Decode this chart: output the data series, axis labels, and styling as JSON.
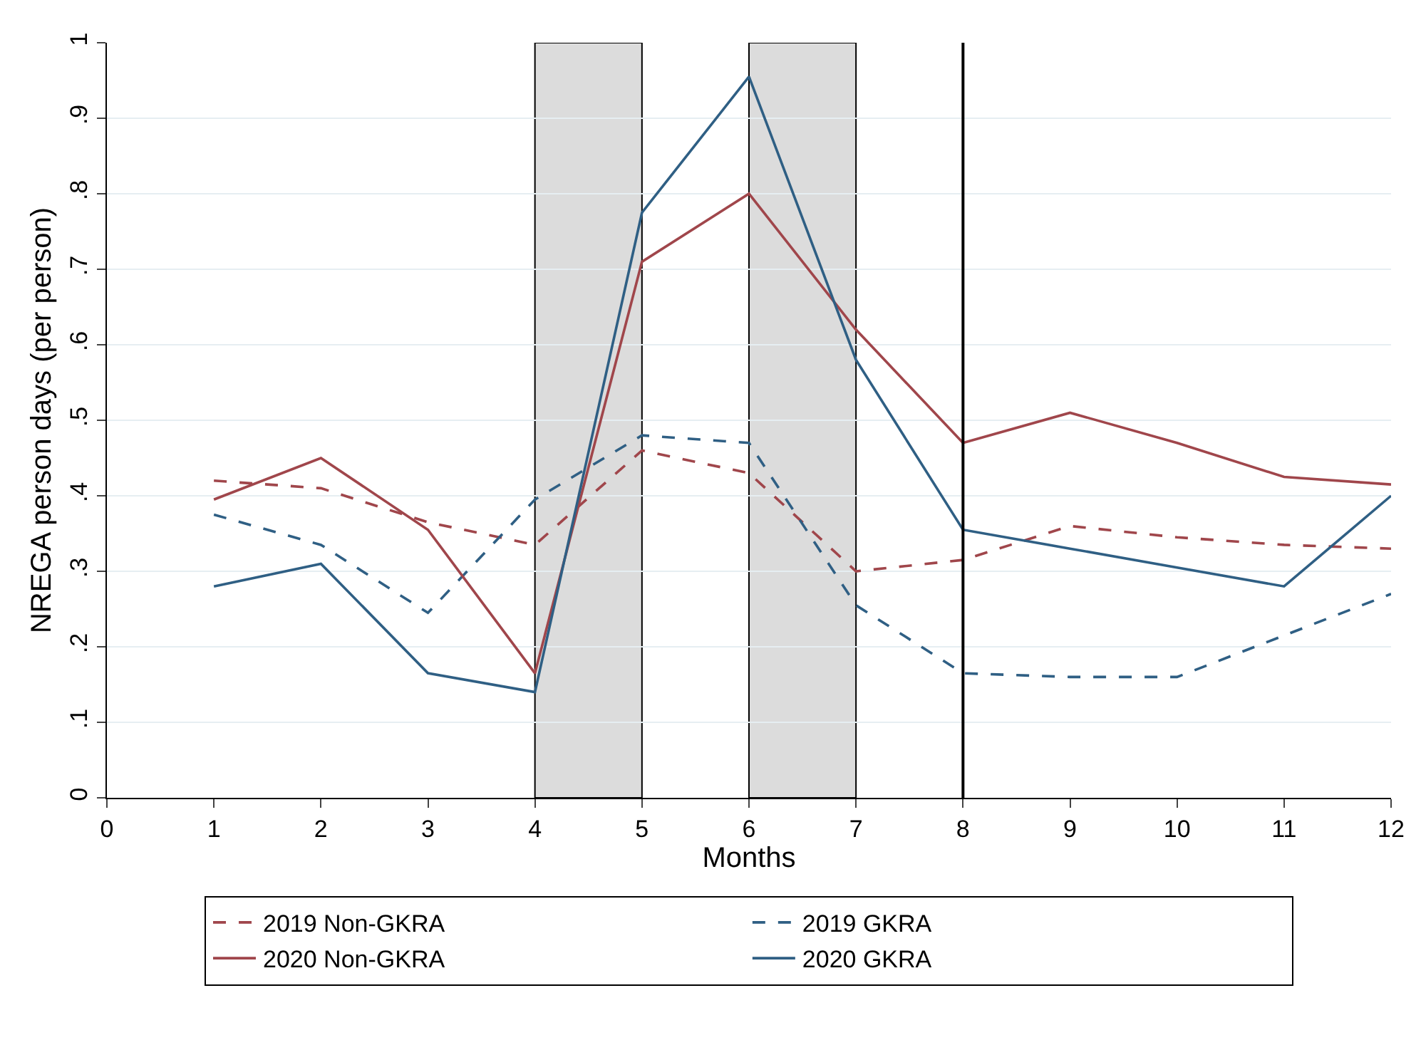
{
  "chart_data": {
    "type": "line",
    "xlabel": "Months",
    "ylabel": "NREGA person days (per person)",
    "x": [
      1,
      2,
      3,
      4,
      5,
      6,
      7,
      8,
      9,
      10,
      11,
      12
    ],
    "xlim": [
      0,
      12
    ],
    "xticks": [
      0,
      1,
      2,
      3,
      4,
      5,
      6,
      7,
      8,
      9,
      10,
      11,
      12
    ],
    "ylim": [
      0,
      1
    ],
    "yticks": [
      {
        "value": 0,
        "label": "0"
      },
      {
        "value": 0.1,
        "label": ".1"
      },
      {
        "value": 0.2,
        "label": ".2"
      },
      {
        "value": 0.3,
        "label": ".3"
      },
      {
        "value": 0.4,
        "label": ".4"
      },
      {
        "value": 0.5,
        "label": ".5"
      },
      {
        "value": 0.6,
        "label": ".6"
      },
      {
        "value": 0.7,
        "label": ".7"
      },
      {
        "value": 0.8,
        "label": ".8"
      },
      {
        "value": 0.9,
        "label": ".9"
      },
      {
        "value": 1,
        "label": "1"
      }
    ],
    "grid": "y",
    "legend": "bottom",
    "marker": "none",
    "series": [
      {
        "name": "2019 Non-GKRA",
        "color": "#a0464b",
        "line_style": "dashed",
        "values": [
          0.42,
          0.41,
          0.365,
          0.335,
          0.46,
          0.43,
          0.3,
          0.315,
          0.36,
          0.345,
          0.335,
          0.33
        ]
      },
      {
        "name": "2019 GKRA",
        "color": "#2f5f84",
        "line_style": "dashed",
        "values": [
          0.375,
          0.335,
          0.245,
          0.395,
          0.48,
          0.47,
          0.255,
          0.165,
          0.16,
          0.16,
          0.215,
          0.27
        ]
      },
      {
        "name": "2020 Non-GKRA",
        "color": "#a0464b",
        "line_style": "solid",
        "values": [
          0.395,
          0.45,
          0.355,
          0.165,
          0.71,
          0.8,
          0.62,
          0.47,
          0.51,
          0.47,
          0.425,
          0.415
        ]
      },
      {
        "name": "2020 GKRA",
        "color": "#2f5f84",
        "line_style": "solid",
        "values": [
          0.28,
          0.31,
          0.165,
          0.14,
          0.775,
          0.955,
          0.58,
          0.355,
          0.33,
          0.305,
          0.28,
          0.4
        ]
      }
    ],
    "bands": [
      {
        "axis": "x",
        "from": 4,
        "to": 5,
        "color": "#dcdcdc"
      },
      {
        "axis": "x",
        "from": 6,
        "to": 7,
        "color": "#dcdcdc"
      }
    ],
    "ref_lines": [
      {
        "axis": "x",
        "value": 8,
        "color": "#000000",
        "line_style": "solid"
      }
    ]
  }
}
